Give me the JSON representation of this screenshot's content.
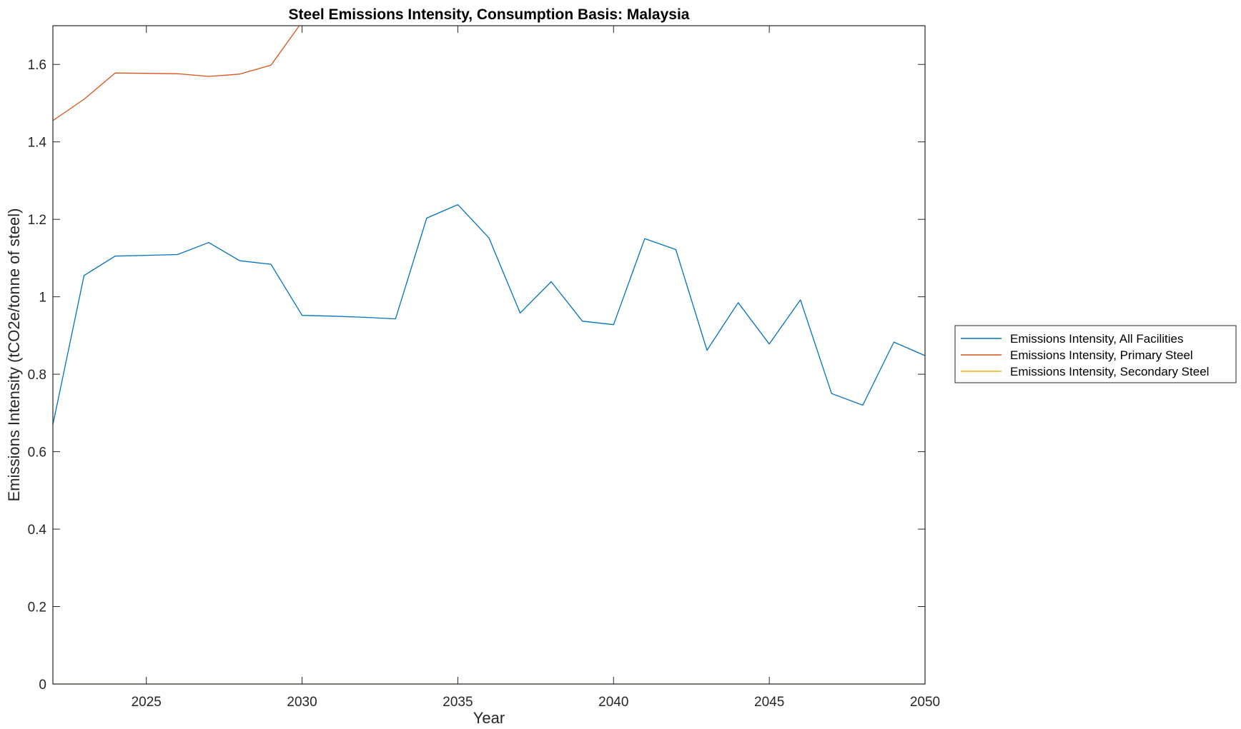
{
  "chart_data": {
    "type": "line",
    "title": "Steel Emissions Intensity, Consumption Basis: Malaysia",
    "xlabel": "Year",
    "ylabel": "Emissions Intensity (tCO2e/tonne of steel)",
    "xlim": [
      2022,
      2050
    ],
    "ylim": [
      0,
      1.7
    ],
    "xticks": [
      2025,
      2030,
      2035,
      2040,
      2045,
      2050
    ],
    "xtick_labels": [
      "2025",
      "2030",
      "2035",
      "2040",
      "2045",
      "2050"
    ],
    "yticks": [
      0,
      0.2,
      0.4,
      0.6,
      0.8,
      1,
      1.2,
      1.4,
      1.6
    ],
    "ytick_labels": [
      "0",
      "0.2",
      "0.4",
      "0.6",
      "0.8",
      "1",
      "1.2",
      "1.4",
      "1.6"
    ],
    "grid": false,
    "legend_position": "outside-right",
    "x": [
      2022,
      2023,
      2024,
      2025,
      2026,
      2027,
      2028,
      2029,
      2030,
      2031,
      2032,
      2033,
      2034,
      2035,
      2036,
      2037,
      2038,
      2039,
      2040,
      2041,
      2042,
      2043,
      2044,
      2045,
      2046,
      2047,
      2048,
      2049,
      2050
    ],
    "series": [
      {
        "name": "Emissions Intensity, All Facilities",
        "color": "#0072BD",
        "values": [
          0.67,
          1.055,
          1.105,
          1.107,
          1.109,
          1.14,
          1.093,
          1.084,
          0.952,
          0.95,
          0.947,
          0.943,
          1.203,
          1.238,
          1.152,
          0.958,
          1.039,
          0.937,
          0.928,
          1.15,
          1.122,
          0.862,
          0.985,
          0.878,
          0.992,
          0.75,
          0.72,
          0.883,
          0.848
        ]
      },
      {
        "name": "Emissions Intensity, Primary Steel",
        "color": "#D95319",
        "values": [
          1.455,
          1.51,
          1.578,
          1.577,
          1.576,
          1.569,
          1.575,
          1.598,
          1.71,
          1.71,
          1.71,
          1.71,
          1.71,
          1.71,
          1.71,
          1.71,
          1.71,
          1.71,
          1.71,
          1.71,
          1.71,
          1.71,
          1.71,
          1.71,
          1.71,
          1.71,
          1.71,
          1.71,
          1.71
        ]
      },
      {
        "name": "Emissions Intensity, Secondary Steel",
        "color": "#EDB120",
        "values": [
          0,
          0,
          0,
          0,
          0,
          0,
          0,
          0,
          0,
          0,
          0,
          0,
          0,
          0,
          0,
          0,
          0,
          0,
          0,
          0,
          0,
          0,
          0,
          0,
          0,
          0,
          0,
          0,
          0
        ]
      }
    ]
  }
}
